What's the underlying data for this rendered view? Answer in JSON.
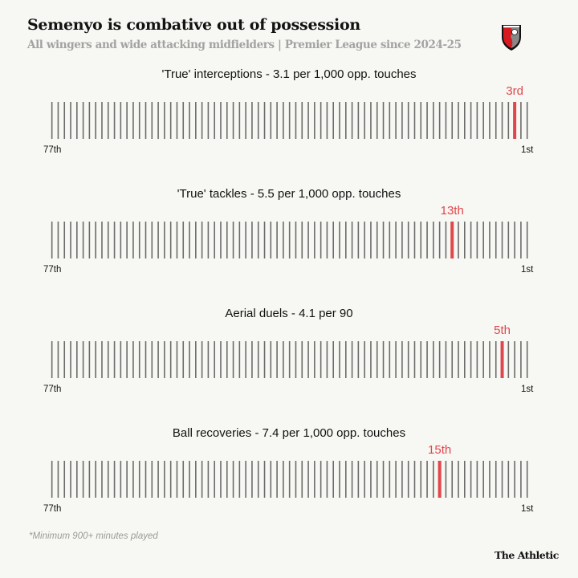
{
  "header": {
    "title": "Semenyo is combative out of possession",
    "subtitle": "All wingers and wide attacking midfielders | Premier League since 2024-25",
    "logo": "AFC Bournemouth crest"
  },
  "colors": {
    "background": "#f7f7f3",
    "line": "#6b6b6b",
    "highlight": "#e0474c"
  },
  "chart_data": [
    {
      "type": "strip-rank",
      "title": "'True' interceptions - 3.1 per 1,000 opp. touches",
      "total": 77,
      "rank": 3,
      "rank_label": "3rd",
      "left_label": "77th",
      "right_label": "1st"
    },
    {
      "type": "strip-rank",
      "title": "'True' tackles - 5.5 per 1,000 opp. touches",
      "total": 77,
      "rank": 13,
      "rank_label": "13th",
      "left_label": "77th",
      "right_label": "1st"
    },
    {
      "type": "strip-rank",
      "title": "Aerial duels - 4.1 per 90",
      "total": 77,
      "rank": 5,
      "rank_label": "5th",
      "left_label": "77th",
      "right_label": "1st"
    },
    {
      "type": "strip-rank",
      "title": "Ball recoveries - 7.4 per 1,000 opp. touches",
      "total": 77,
      "rank": 15,
      "rank_label": "15th",
      "left_label": "77th",
      "right_label": "1st"
    }
  ],
  "footer": {
    "note": "*Minimum 900+ minutes played",
    "brand": "The Athletic"
  }
}
